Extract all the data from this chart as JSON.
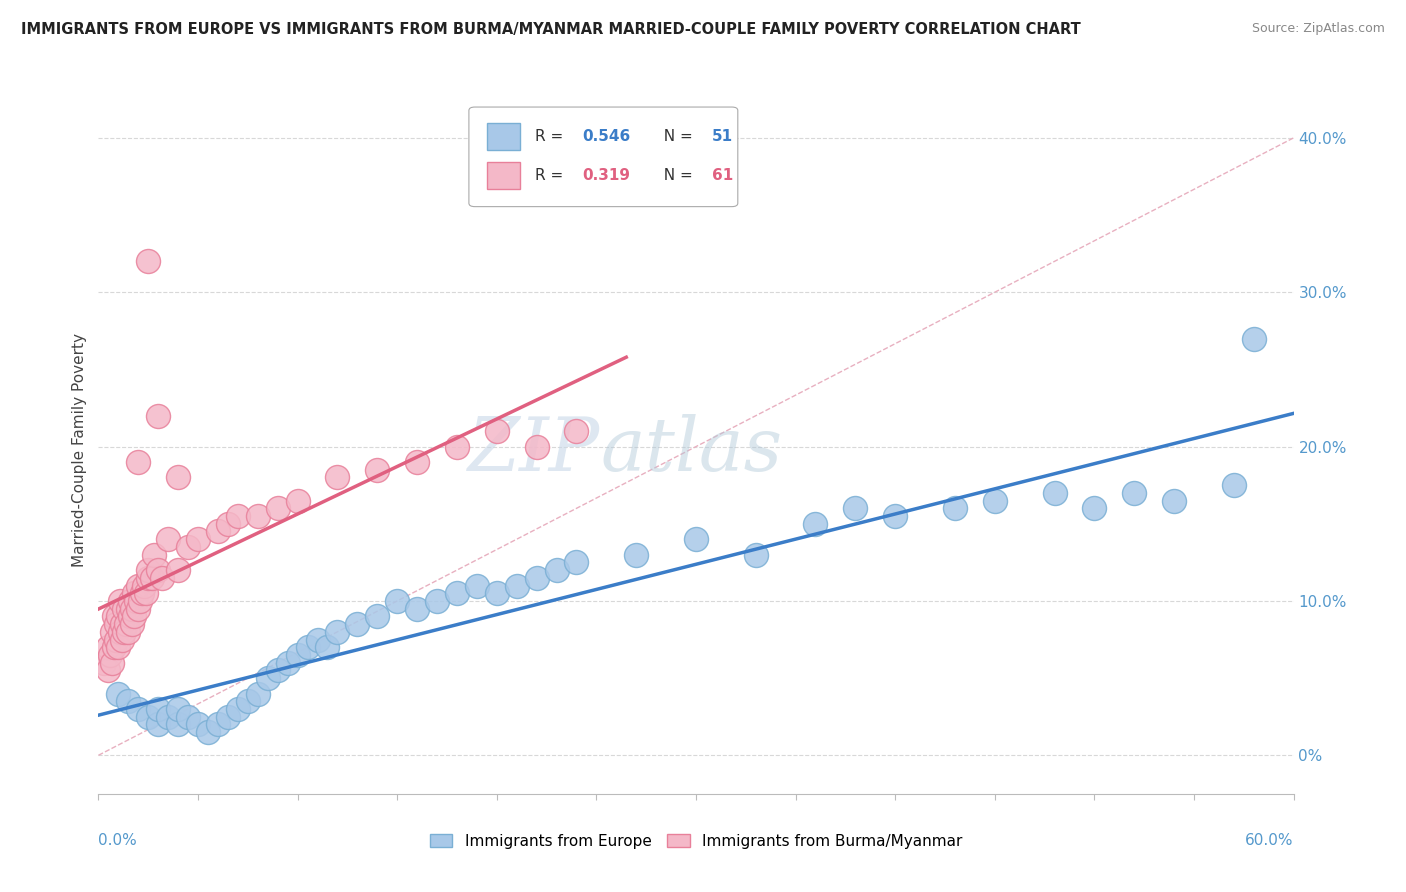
{
  "title": "IMMIGRANTS FROM EUROPE VS IMMIGRANTS FROM BURMA/MYANMAR MARRIED-COUPLE FAMILY POVERTY CORRELATION CHART",
  "source": "Source: ZipAtlas.com",
  "ylabel": "Married-Couple Family Poverty",
  "color_europe": "#a8c8e8",
  "color_europe_edge": "#7aafd4",
  "color_burma": "#f4b8c8",
  "color_burma_edge": "#e8809a",
  "color_europe_line": "#3b7dc8",
  "color_burma_line": "#e06080",
  "color_diag": "#d0d0d0",
  "color_grid": "#d8d8d8",
  "background": "#ffffff",
  "xmin": 0.0,
  "xmax": 0.6,
  "ymin": -0.025,
  "ymax": 0.42,
  "yticks": [
    0.0,
    0.1,
    0.2,
    0.3,
    0.4
  ],
  "yticklabels": [
    "0%",
    "10.0%",
    "20.0%",
    "30.0%",
    "40.0%"
  ],
  "xtick_count": 13,
  "legend_europe_r": "0.546",
  "legend_europe_n": "51",
  "legend_burma_r": "0.319",
  "legend_burma_n": "61",
  "legend_r_color": "#333333",
  "legend_val_europe_color": "#3b7dc8",
  "legend_val_burma_color": "#e06080",
  "watermark_zip": "ZIP",
  "watermark_atlas": "atlas",
  "europe_x": [
    0.01,
    0.015,
    0.02,
    0.025,
    0.03,
    0.03,
    0.035,
    0.04,
    0.04,
    0.045,
    0.05,
    0.055,
    0.06,
    0.065,
    0.07,
    0.075,
    0.08,
    0.085,
    0.09,
    0.095,
    0.1,
    0.105,
    0.11,
    0.115,
    0.12,
    0.13,
    0.14,
    0.15,
    0.16,
    0.17,
    0.18,
    0.19,
    0.2,
    0.21,
    0.22,
    0.23,
    0.24,
    0.27,
    0.3,
    0.33,
    0.36,
    0.38,
    0.4,
    0.43,
    0.45,
    0.48,
    0.5,
    0.52,
    0.54,
    0.57,
    0.58
  ],
  "europe_y": [
    0.04,
    0.035,
    0.03,
    0.025,
    0.02,
    0.03,
    0.025,
    0.02,
    0.03,
    0.025,
    0.02,
    0.015,
    0.02,
    0.025,
    0.03,
    0.035,
    0.04,
    0.05,
    0.055,
    0.06,
    0.065,
    0.07,
    0.075,
    0.07,
    0.08,
    0.085,
    0.09,
    0.1,
    0.095,
    0.1,
    0.105,
    0.11,
    0.105,
    0.11,
    0.115,
    0.12,
    0.125,
    0.13,
    0.14,
    0.13,
    0.15,
    0.16,
    0.155,
    0.16,
    0.165,
    0.17,
    0.16,
    0.17,
    0.165,
    0.175,
    0.27
  ],
  "burma_x": [
    0.003,
    0.005,
    0.005,
    0.006,
    0.007,
    0.007,
    0.008,
    0.008,
    0.009,
    0.009,
    0.01,
    0.01,
    0.011,
    0.011,
    0.012,
    0.012,
    0.013,
    0.013,
    0.014,
    0.015,
    0.015,
    0.016,
    0.016,
    0.017,
    0.017,
    0.018,
    0.018,
    0.019,
    0.02,
    0.02,
    0.021,
    0.022,
    0.023,
    0.024,
    0.025,
    0.025,
    0.027,
    0.028,
    0.03,
    0.032,
    0.035,
    0.04,
    0.045,
    0.05,
    0.06,
    0.065,
    0.07,
    0.08,
    0.09,
    0.1,
    0.12,
    0.14,
    0.16,
    0.18,
    0.2,
    0.22,
    0.24,
    0.03,
    0.02,
    0.04,
    0.025
  ],
  "burma_y": [
    0.06,
    0.055,
    0.07,
    0.065,
    0.08,
    0.06,
    0.07,
    0.09,
    0.075,
    0.085,
    0.07,
    0.09,
    0.08,
    0.1,
    0.075,
    0.085,
    0.08,
    0.095,
    0.085,
    0.08,
    0.095,
    0.09,
    0.1,
    0.085,
    0.095,
    0.09,
    0.105,
    0.1,
    0.095,
    0.11,
    0.1,
    0.105,
    0.11,
    0.105,
    0.115,
    0.12,
    0.115,
    0.13,
    0.12,
    0.115,
    0.14,
    0.12,
    0.135,
    0.14,
    0.145,
    0.15,
    0.155,
    0.155,
    0.16,
    0.165,
    0.18,
    0.185,
    0.19,
    0.2,
    0.21,
    0.2,
    0.21,
    0.22,
    0.19,
    0.18,
    0.32
  ]
}
